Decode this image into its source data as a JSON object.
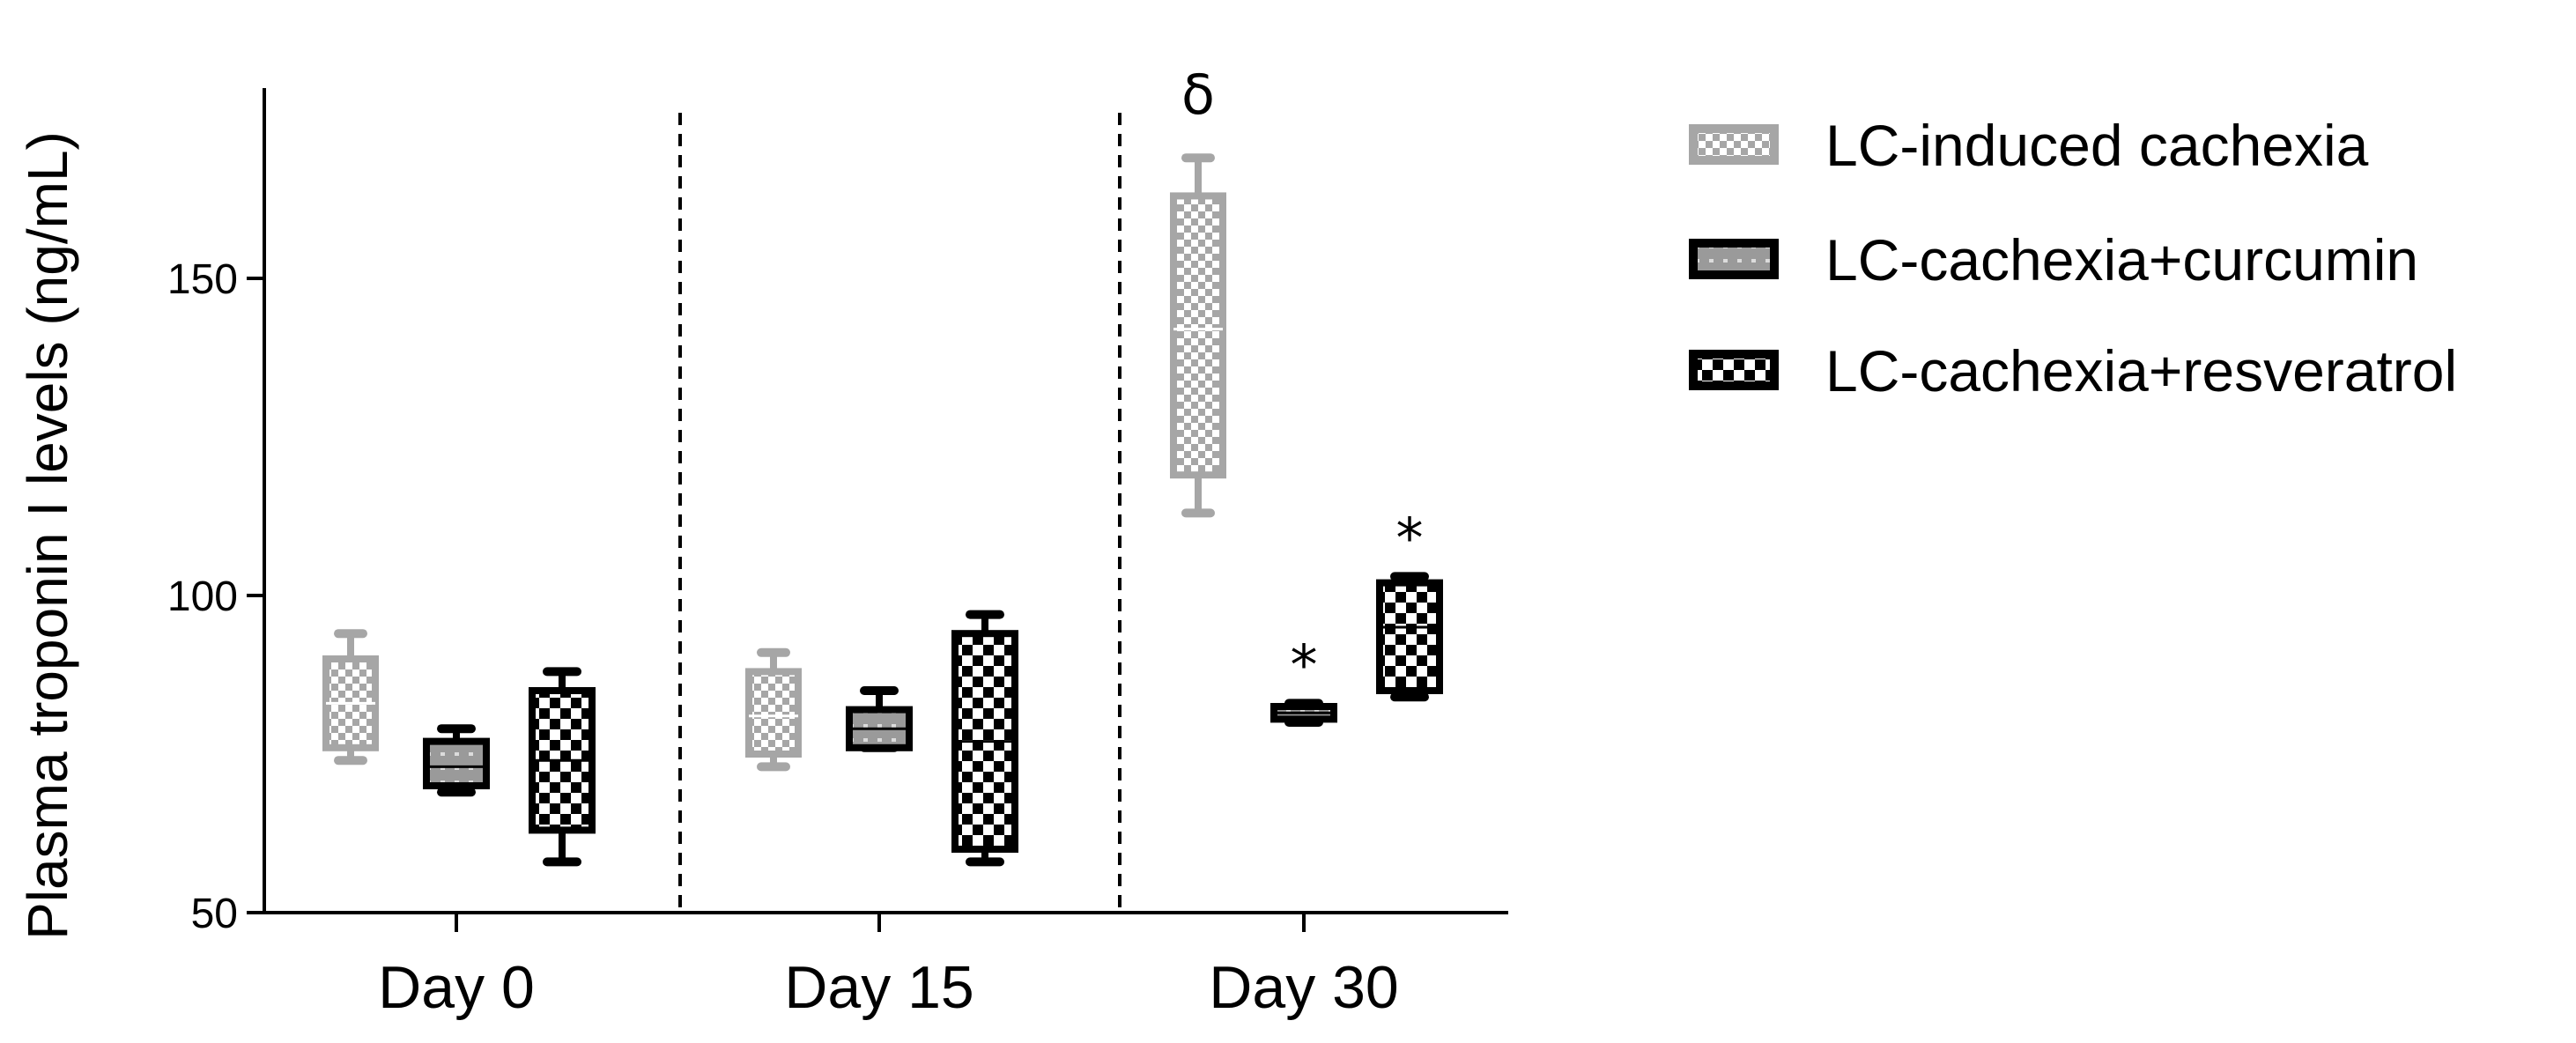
{
  "chart_data": {
    "type": "box",
    "ylabel": "Plasma troponin I levels (ng/mL)",
    "xlabel": "",
    "ylim": [
      50,
      180
    ],
    "yticks": [
      50,
      100,
      150
    ],
    "categories": [
      "Day 0",
      "Day 15",
      "Day 30"
    ],
    "grid": false,
    "legend_position": "right",
    "series": [
      {
        "name": "LC-induced cachexia",
        "color": "#a6a6a6",
        "pattern": "light-checker",
        "boxes": [
          {
            "min": 74,
            "q1": 76,
            "median": 83,
            "q3": 90,
            "max": 94
          },
          {
            "min": 73,
            "q1": 75,
            "median": 81,
            "q3": 88,
            "max": 91
          },
          {
            "min": 113,
            "q1": 119,
            "median": 142,
            "q3": 163,
            "max": 169
          }
        ]
      },
      {
        "name": "LC-cachexia+curcumin",
        "color": "#000000",
        "pattern": "gray-dots",
        "boxes": [
          {
            "min": 69,
            "q1": 70,
            "median": 73,
            "q3": 77,
            "max": 79
          },
          {
            "min": 76,
            "q1": 76,
            "median": 79,
            "q3": 82,
            "max": 85
          },
          {
            "min": 80,
            "q1": 80.5,
            "median": 81.5,
            "q3": 82.5,
            "max": 83
          }
        ]
      },
      {
        "name": "LC-cachexia+resveratrol",
        "color": "#000000",
        "pattern": "dark-checker",
        "boxes": [
          {
            "min": 58,
            "q1": 63,
            "median": 74,
            "q3": 85,
            "max": 88
          },
          {
            "min": 58,
            "q1": 60,
            "median": 77,
            "q3": 94,
            "max": 97
          },
          {
            "min": 84,
            "q1": 85,
            "median": 95,
            "q3": 102,
            "max": 103
          }
        ]
      }
    ],
    "annotations": [
      {
        "text": "δ",
        "category": "Day 30",
        "series": "LC-induced cachexia"
      },
      {
        "text": "*",
        "category": "Day 30",
        "series": "LC-cachexia+curcumin"
      },
      {
        "text": "*",
        "category": "Day 30",
        "series": "LC-cachexia+resveratrol"
      }
    ]
  }
}
